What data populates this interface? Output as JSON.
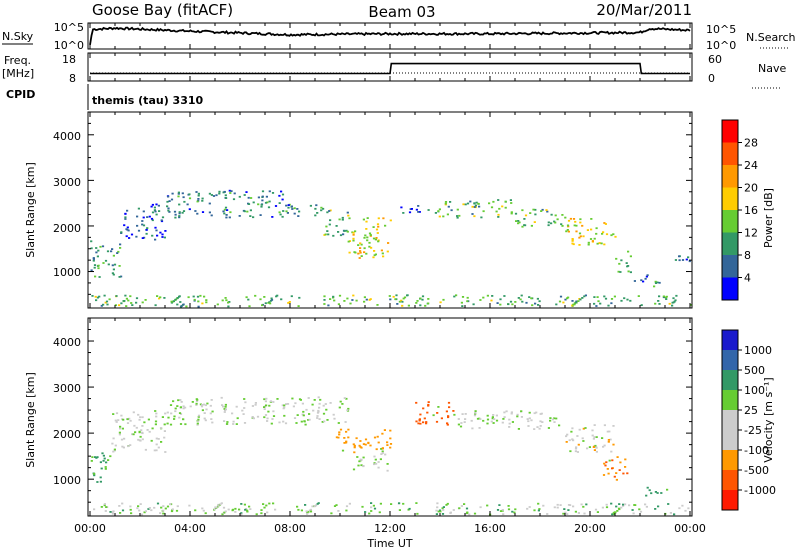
{
  "header": {
    "title": "Goose Bay (fitACF)",
    "beam": "Beam 03",
    "date": "20/Mar/2011"
  },
  "noise_panel": {
    "left_label": "N.Sky",
    "left_ticks": [
      "10^5",
      "10^0"
    ],
    "right_ticks": [
      "10^5",
      "10^0"
    ],
    "right_label": "N.Search"
  },
  "freq_panel": {
    "left_label_1": "Freq.",
    "left_label_2": "[MHz]",
    "left_ticks": [
      "18",
      "8"
    ],
    "right_ticks": [
      "60",
      "0"
    ],
    "right_label": "Nave"
  },
  "cpid": {
    "label": "CPID",
    "value": "themis (tau) 3310"
  },
  "x_axis": {
    "label": "Time UT",
    "ticks": [
      "00:00",
      "04:00",
      "08:00",
      "12:00",
      "16:00",
      "20:00",
      "00:00"
    ]
  },
  "power_panel": {
    "ylabel": "Slant Range [km]",
    "yticks": [
      "4000",
      "3000",
      "2000",
      "1000"
    ],
    "colorbar_label": "Power [dB]",
    "colorbar_ticks": [
      "28",
      "24",
      "20",
      "16",
      "12",
      "8",
      "4"
    ],
    "colorbar_colors": [
      "#ff0000",
      "#ff5500",
      "#ff9900",
      "#ffcc00",
      "#66cc33",
      "#339966",
      "#336699",
      "#0000ff"
    ]
  },
  "velocity_panel": {
    "ylabel": "Slant Range [km]",
    "yticks": [
      "4000",
      "3000",
      "2000",
      "1000"
    ],
    "colorbar_label": "Velocity [m s⁻¹]",
    "colorbar_ticks": [
      "1000",
      "500",
      "100",
      "25",
      "-25",
      "-100",
      "-500",
      "-1000"
    ],
    "colorbar_colors": [
      "#1a1acc",
      "#3366aa",
      "#339966",
      "#66cc33",
      "#cccccc",
      "#cccccc",
      "#ff9900",
      "#ff5500",
      "#ff1a00"
    ]
  },
  "chart_data": [
    {
      "type": "line",
      "title": "N.Sky / N.Search",
      "x_range": [
        0,
        24
      ],
      "x_unit": "hours UT",
      "series": [
        {
          "name": "N.Sky",
          "points": [
            [
              0.0,
              0.5
            ],
            [
              0.1,
              4.0
            ],
            [
              1.0,
              4.3
            ],
            [
              4.0,
              3.6
            ],
            [
              8.0,
              2.8
            ],
            [
              12.0,
              3.0
            ],
            [
              16.0,
              3.0
            ],
            [
              20.0,
              3.2
            ],
            [
              22.0,
              3.3
            ],
            [
              22.4,
              4.2
            ],
            [
              24.0,
              3.8
            ]
          ]
        }
      ]
    },
    {
      "type": "line",
      "title": "Freq. / Nave",
      "x_range": [
        0,
        24
      ],
      "series": [
        {
          "name": "Freq.",
          "points": [
            [
              0,
              10.5
            ],
            [
              12,
              10.5
            ],
            [
              12.05,
              15
            ],
            [
              22,
              15
            ],
            [
              22.05,
              10.5
            ],
            [
              24,
              10.5
            ]
          ]
        },
        {
          "name": "Nave",
          "points": [
            [
              0,
              20
            ],
            [
              24,
              20
            ]
          ]
        }
      ]
    },
    {
      "type": "heatmap",
      "title": "Power",
      "x_range": [
        0,
        24
      ],
      "y_range": [
        200,
        4500
      ],
      "colorbar_range": [
        0,
        30
      ],
      "regions": [
        {
          "t": [
            0.0,
            1.2
          ],
          "r": [
            900,
            1700
          ],
          "level": 10
        },
        {
          "t": [
            1.2,
            3.0
          ],
          "r": [
            1700,
            2500
          ],
          "level": 6
        },
        {
          "t": [
            3.0,
            8.0
          ],
          "r": [
            2200,
            2800
          ],
          "level": 8
        },
        {
          "t": [
            8.0,
            9.3
          ],
          "r": [
            2200,
            2500
          ],
          "level": 9
        },
        {
          "t": [
            9.3,
            10.3
          ],
          "r": [
            1800,
            2400
          ],
          "level": 12
        },
        {
          "t": [
            10.3,
            12.0
          ],
          "r": [
            1300,
            2200
          ],
          "level": 17
        },
        {
          "t": [
            12.4,
            13.8
          ],
          "r": [
            2300,
            2500
          ],
          "level": 6
        },
        {
          "t": [
            13.8,
            17.0
          ],
          "r": [
            2200,
            2600
          ],
          "level": 12
        },
        {
          "t": [
            17.0,
            19.0
          ],
          "r": [
            2000,
            2400
          ],
          "level": 12
        },
        {
          "t": [
            19.0,
            21.0
          ],
          "r": [
            1600,
            2200
          ],
          "level": 17
        },
        {
          "t": [
            21.0,
            21.6
          ],
          "r": [
            1000,
            1500
          ],
          "level": 12
        },
        {
          "t": [
            21.6,
            22.4
          ],
          "r": [
            800,
            1000
          ],
          "level": 5
        },
        {
          "t": [
            22.4,
            23.3
          ],
          "r": [
            650,
            800
          ],
          "level": 10
        },
        {
          "t": [
            23.0,
            24.0
          ],
          "r": [
            1200,
            1400
          ],
          "level": 6
        },
        {
          "t": [
            0.0,
            24.0
          ],
          "r": [
            250,
            500
          ],
          "level": 12
        }
      ]
    },
    {
      "type": "heatmap",
      "title": "Velocity",
      "x_range": [
        0,
        24
      ],
      "y_range": [
        200,
        4500
      ],
      "colorbar_range": [
        -1000,
        1000
      ],
      "regions": [
        {
          "t": [
            0.0,
            0.8
          ],
          "r": [
            900,
            1600
          ],
          "velocity": 150
        },
        {
          "t": [
            0.8,
            3.0
          ],
          "r": [
            1600,
            2500
          ],
          "velocity": 0
        },
        {
          "t": [
            3.0,
            10.3
          ],
          "r": [
            2200,
            2800
          ],
          "velocity": 0
        },
        {
          "t": [
            9.8,
            12.0
          ],
          "r": [
            1600,
            2100
          ],
          "velocity": -200
        },
        {
          "t": [
            10.5,
            12.0
          ],
          "r": [
            1200,
            1600
          ],
          "velocity": 0
        },
        {
          "t": [
            13.0,
            14.5
          ],
          "r": [
            2200,
            2700
          ],
          "velocity": -500
        },
        {
          "t": [
            14.5,
            19.0
          ],
          "r": [
            2100,
            2500
          ],
          "velocity": 0
        },
        {
          "t": [
            19.0,
            21.0
          ],
          "r": [
            1600,
            2200
          ],
          "velocity": -50
        },
        {
          "t": [
            20.5,
            21.5
          ],
          "r": [
            1000,
            1500
          ],
          "velocity": -300
        },
        {
          "t": [
            22.2,
            23.2
          ],
          "r": [
            650,
            850
          ],
          "velocity": 150
        },
        {
          "t": [
            0.0,
            24.0
          ],
          "r": [
            250,
            500
          ],
          "velocity": 50
        }
      ]
    }
  ]
}
